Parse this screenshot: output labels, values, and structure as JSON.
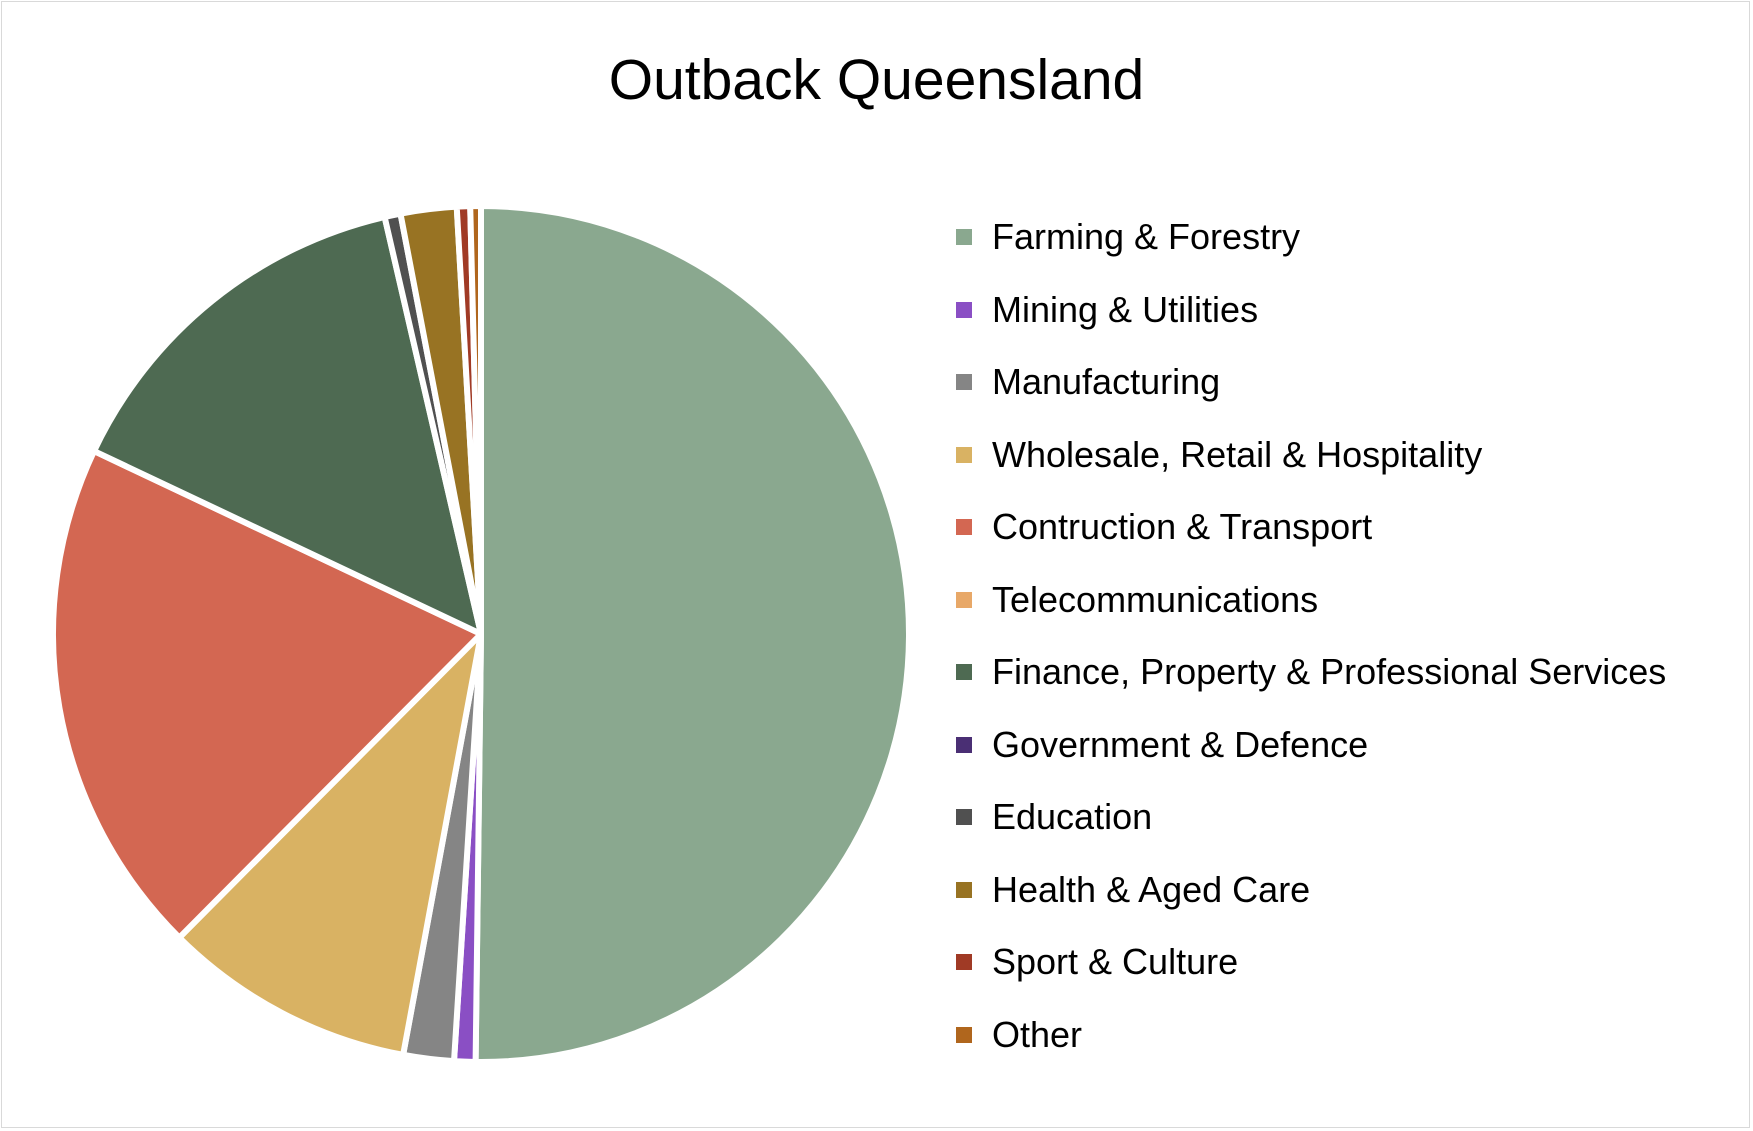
{
  "chart_data": {
    "type": "pie",
    "title": "Outback Queensland",
    "legend_position": "right",
    "categories": [
      "Farming & Forestry",
      "Mining & Utilities",
      "Manufacturing",
      "Wholesale, Retail & Hospitality",
      "Contruction & Transport",
      "Telecommunications",
      "Finance, Property & Professional Services",
      "Government & Defence",
      "Education",
      "Health & Aged Care",
      "Sport & Culture",
      "Other"
    ],
    "values": [
      50.0,
      0.8,
      1.9,
      9.5,
      19.5,
      0.0,
      14.3,
      0.0,
      0.6,
      2.1,
      0.5,
      0.4
    ],
    "colors": [
      "#8aa88f",
      "#8a4fc4",
      "#858585",
      "#d9b263",
      "#d36752",
      "#e8a868",
      "#4e6a52",
      "#4a2f74",
      "#505050",
      "#987323",
      "#a03a25",
      "#b0661d"
    ]
  }
}
